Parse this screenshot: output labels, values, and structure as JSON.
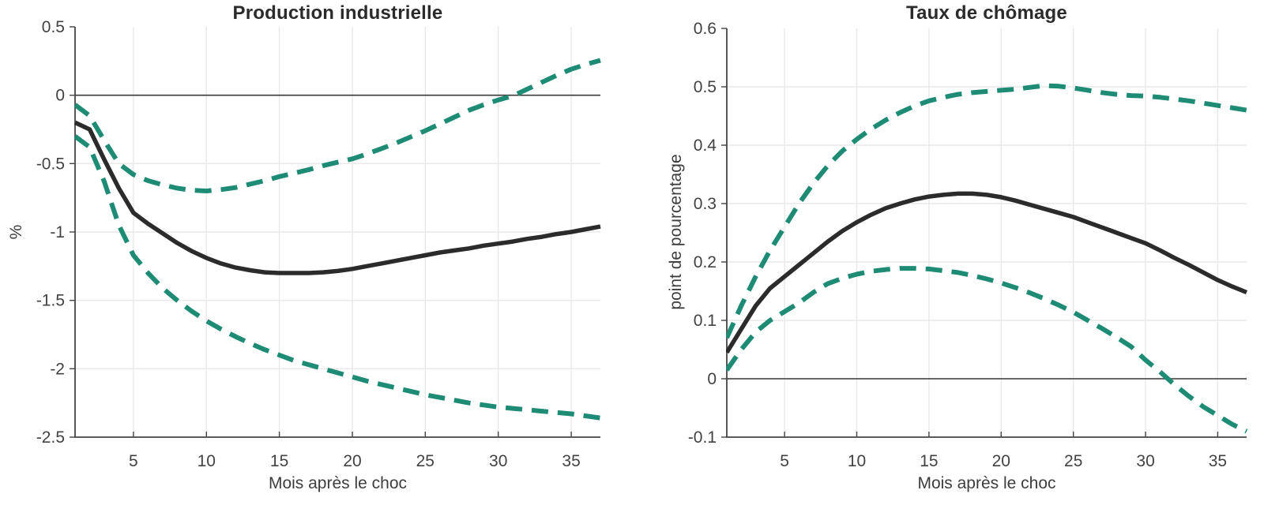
{
  "style": {
    "background_color": "#ffffff",
    "grid_color": "#e9e9e9",
    "axis_color": "#454545",
    "zero_line_color": "#3a3a3a",
    "tick_label_color": "#424242",
    "title_color": "#2b2b2b",
    "estimate_color": "#2b2b2b",
    "band_color": "#1e8c75"
  },
  "chart_data": [
    {
      "type": "line",
      "title": "Production industrielle",
      "xlabel": "Mois après le choc",
      "ylabel": "%",
      "xlim": [
        1,
        37
      ],
      "ylim": [
        -2.5,
        0.5
      ],
      "grid": true,
      "zero_line": true,
      "x_ticks": [
        5,
        10,
        15,
        20,
        25,
        30,
        35
      ],
      "x_tick_labels": [
        "5",
        "10",
        "15",
        "20",
        "25",
        "30",
        "35"
      ],
      "y_ticks": [
        0.5,
        0,
        -0.5,
        -1,
        -1.5,
        -2,
        -2.5
      ],
      "y_tick_labels": [
        "0.5",
        "0",
        "-0.5",
        "-1",
        "-1.5",
        "-2",
        "-2.5"
      ],
      "x": [
        1,
        2,
        3,
        4,
        5,
        6,
        7,
        8,
        9,
        10,
        11,
        12,
        13,
        14,
        15,
        16,
        17,
        18,
        19,
        20,
        21,
        22,
        23,
        24,
        25,
        26,
        27,
        28,
        29,
        30,
        31,
        32,
        33,
        34,
        35,
        36,
        37
      ],
      "series": [
        {
          "id": "upper-band",
          "style": "dashed",
          "color": "#1e8c75",
          "values": [
            -0.07,
            -0.15,
            -0.33,
            -0.5,
            -0.58,
            -0.625,
            -0.655,
            -0.68,
            -0.695,
            -0.7,
            -0.69,
            -0.675,
            -0.65,
            -0.625,
            -0.595,
            -0.57,
            -0.545,
            -0.515,
            -0.49,
            -0.465,
            -0.43,
            -0.39,
            -0.35,
            -0.305,
            -0.26,
            -0.21,
            -0.16,
            -0.11,
            -0.07,
            -0.035,
            -0.005,
            0.045,
            0.095,
            0.145,
            0.19,
            0.225,
            0.255
          ]
        },
        {
          "id": "lower-band",
          "style": "dashed",
          "color": "#1e8c75",
          "values": [
            -0.3,
            -0.38,
            -0.63,
            -0.95,
            -1.17,
            -1.3,
            -1.41,
            -1.5,
            -1.58,
            -1.65,
            -1.71,
            -1.765,
            -1.815,
            -1.86,
            -1.9,
            -1.94,
            -1.97,
            -2.0,
            -2.03,
            -2.06,
            -2.09,
            -2.115,
            -2.14,
            -2.165,
            -2.19,
            -2.21,
            -2.23,
            -2.25,
            -2.265,
            -2.28,
            -2.29,
            -2.3,
            -2.31,
            -2.32,
            -2.33,
            -2.345,
            -2.36
          ]
        },
        {
          "id": "point-estimate",
          "style": "solid",
          "color": "#2b2b2b",
          "values": [
            -0.2,
            -0.25,
            -0.47,
            -0.68,
            -0.86,
            -0.94,
            -1.01,
            -1.08,
            -1.14,
            -1.19,
            -1.23,
            -1.26,
            -1.28,
            -1.295,
            -1.3,
            -1.3,
            -1.3,
            -1.295,
            -1.285,
            -1.27,
            -1.25,
            -1.23,
            -1.21,
            -1.19,
            -1.17,
            -1.15,
            -1.135,
            -1.12,
            -1.1,
            -1.085,
            -1.07,
            -1.05,
            -1.035,
            -1.015,
            -1.0,
            -0.98,
            -0.96
          ]
        }
      ]
    },
    {
      "type": "line",
      "title": "Taux de chômage",
      "xlabel": "Mois après le choc",
      "ylabel": "point de pourcentage",
      "xlim": [
        1,
        37
      ],
      "ylim": [
        -0.1,
        0.6
      ],
      "grid": true,
      "zero_line": true,
      "x_ticks": [
        5,
        10,
        15,
        20,
        25,
        30,
        35
      ],
      "x_tick_labels": [
        "5",
        "10",
        "15",
        "20",
        "25",
        "30",
        "35"
      ],
      "y_ticks": [
        0.6,
        0.5,
        0.4,
        0.3,
        0.2,
        0.1,
        0,
        -0.1
      ],
      "y_tick_labels": [
        "0.6",
        "0.5",
        "0.4",
        "0.3",
        "0.2",
        "0.1",
        "0",
        "-0.1"
      ],
      "x": [
        1,
        2,
        3,
        4,
        5,
        6,
        7,
        8,
        9,
        10,
        11,
        12,
        13,
        14,
        15,
        16,
        17,
        18,
        19,
        20,
        21,
        22,
        23,
        24,
        25,
        26,
        27,
        28,
        29,
        30,
        31,
        32,
        33,
        34,
        35,
        36,
        37
      ],
      "series": [
        {
          "id": "upper-band",
          "style": "dashed",
          "color": "#1e8c75",
          "values": [
            0.07,
            0.125,
            0.175,
            0.22,
            0.26,
            0.3,
            0.335,
            0.365,
            0.39,
            0.41,
            0.428,
            0.443,
            0.456,
            0.467,
            0.476,
            0.482,
            0.487,
            0.49,
            0.492,
            0.494,
            0.496,
            0.499,
            0.502,
            0.501,
            0.498,
            0.494,
            0.49,
            0.487,
            0.485,
            0.484,
            0.482,
            0.479,
            0.476,
            0.472,
            0.468,
            0.464,
            0.46
          ]
        },
        {
          "id": "lower-band",
          "style": "dashed",
          "color": "#1e8c75",
          "values": [
            0.015,
            0.05,
            0.08,
            0.1,
            0.115,
            0.13,
            0.148,
            0.163,
            0.172,
            0.179,
            0.184,
            0.187,
            0.189,
            0.189,
            0.188,
            0.185,
            0.182,
            0.177,
            0.171,
            0.164,
            0.156,
            0.147,
            0.137,
            0.126,
            0.114,
            0.1,
            0.086,
            0.071,
            0.055,
            0.032,
            0.012,
            -0.01,
            -0.03,
            -0.048,
            -0.063,
            -0.078,
            -0.09
          ]
        },
        {
          "id": "point-estimate",
          "style": "solid",
          "color": "#2b2b2b",
          "values": [
            0.045,
            0.085,
            0.125,
            0.155,
            0.175,
            0.195,
            0.215,
            0.235,
            0.253,
            0.268,
            0.281,
            0.292,
            0.3,
            0.307,
            0.312,
            0.315,
            0.317,
            0.317,
            0.315,
            0.311,
            0.305,
            0.298,
            0.291,
            0.284,
            0.277,
            0.268,
            0.259,
            0.25,
            0.241,
            0.232,
            0.22,
            0.207,
            0.195,
            0.182,
            0.169,
            0.158,
            0.148
          ]
        }
      ]
    }
  ]
}
